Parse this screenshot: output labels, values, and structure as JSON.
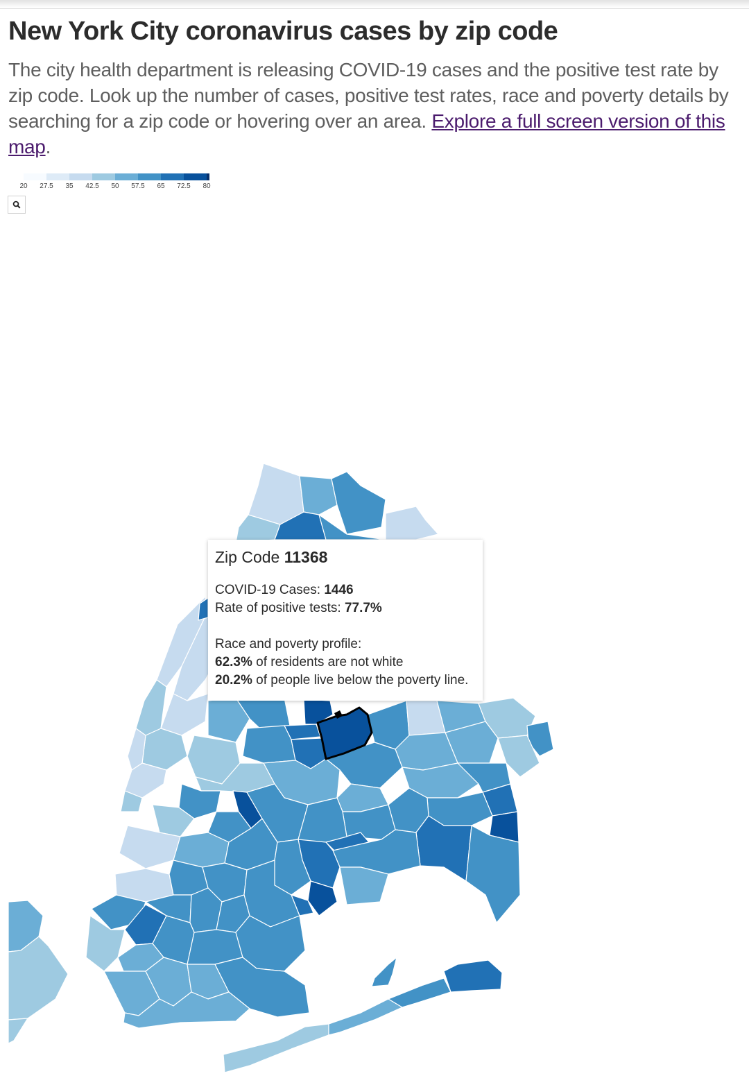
{
  "header": {
    "title": "New York City coronavirus cases by zip code",
    "intro": "The city health department is releasing COVID-19 cases and the positive test rate by zip code. Look up the number of cases, positive test rates, race and poverty details by searching for a zip code or hovering over an area.",
    "link_text": "Explore a full screen version of this map",
    "after_link": "."
  },
  "legend": {
    "ticks": [
      "20",
      "27.5",
      "35",
      "42.5",
      "50",
      "57.5",
      "65",
      "72.5",
      "80"
    ],
    "colors": [
      "#f7fbff",
      "#deebf7",
      "#c6dbef",
      "#9ecae1",
      "#6baed6",
      "#4292c6",
      "#2171b5",
      "#08519c",
      "#08306b"
    ]
  },
  "search": {
    "icon": "search-icon"
  },
  "tooltip": {
    "zip_label": "Zip Code",
    "zip_value": "11368",
    "cases_label": "COVID-19 Cases:",
    "cases_value": "1446",
    "rate_label": "Rate of positive tests:",
    "rate_value": "77.7%",
    "profile_label": "Race and poverty profile:",
    "nonwhite_value": "62.3%",
    "nonwhite_text": "of residents are not white",
    "poverty_value": "20.2%",
    "poverty_text": "of people live below the poverty line."
  },
  "map_colors": {
    "lightest": "#c6dbef",
    "light": "#9ecae1",
    "mid": "#6baed6",
    "midDark": "#4292c6",
    "dark": "#2171b5",
    "darkest": "#08519c",
    "highlight_stroke": "#000000"
  }
}
